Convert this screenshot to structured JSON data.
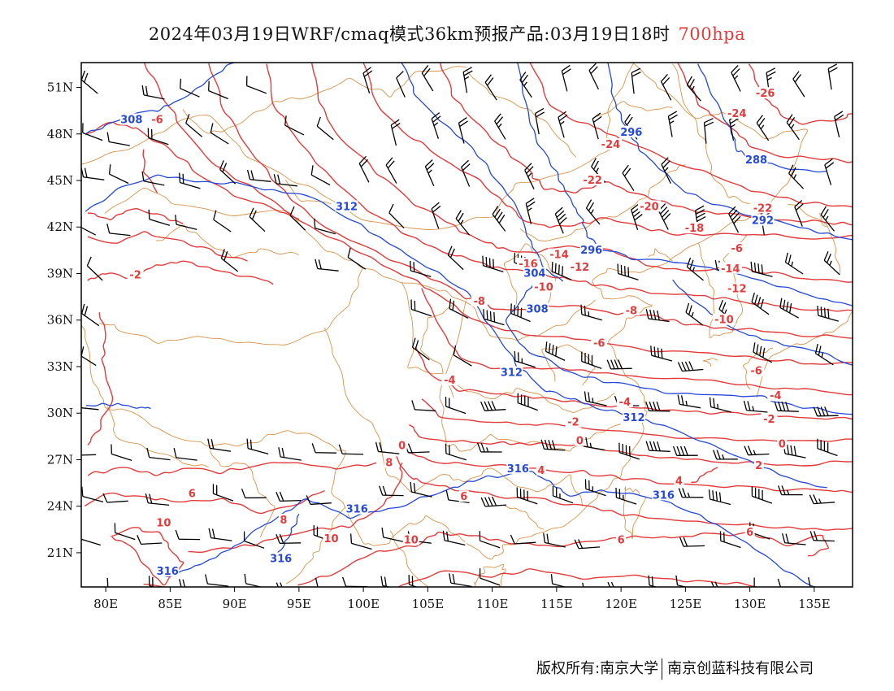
{
  "title": {
    "main": "2024年03月19日WRF/cmaq模式36km预报产品:03月19日18时",
    "level": "700hpa",
    "level_color": "#e23b3b"
  },
  "colors": {
    "temperature": "#e23b3b",
    "height": "#2448d8",
    "border": "#d9924a",
    "wind": "#000000"
  },
  "axes": {
    "lon_ticks": [
      "80E",
      "85E",
      "90E",
      "95E",
      "100E",
      "105E",
      "110E",
      "115E",
      "120E",
      "125E",
      "130E",
      "135E"
    ],
    "lat_ticks": [
      "51N",
      "48N",
      "45N",
      "42N",
      "39N",
      "36N",
      "33N",
      "30N",
      "27N",
      "24N",
      "21N"
    ]
  },
  "temperature_labels": [
    {
      "text": "-26",
      "lon": 131.2,
      "lat": 50.6
    },
    {
      "text": "-24",
      "lon": 129.0,
      "lat": 49.3
    },
    {
      "text": "-24",
      "lon": 119.2,
      "lat": 47.3
    },
    {
      "text": "-22",
      "lon": 117.8,
      "lat": 45.0
    },
    {
      "text": "-22",
      "lon": 131.0,
      "lat": 43.2
    },
    {
      "text": "-20",
      "lon": 122.2,
      "lat": 43.3
    },
    {
      "text": "-18",
      "lon": 125.7,
      "lat": 41.9
    },
    {
      "text": "-6",
      "lon": 129.0,
      "lat": 40.6
    },
    {
      "text": "-16",
      "lon": 112.8,
      "lat": 39.6
    },
    {
      "text": "-14",
      "lon": 115.2,
      "lat": 40.2
    },
    {
      "text": "-12",
      "lon": 116.8,
      "lat": 39.4
    },
    {
      "text": "-14",
      "lon": 128.5,
      "lat": 39.3
    },
    {
      "text": "-12",
      "lon": 129.0,
      "lat": 38.0
    },
    {
      "text": "-10",
      "lon": 114.0,
      "lat": 38.1
    },
    {
      "text": "-10",
      "lon": 128.0,
      "lat": 36.0
    },
    {
      "text": "-8",
      "lon": 109.0,
      "lat": 37.2
    },
    {
      "text": "-8",
      "lon": 120.8,
      "lat": 36.6
    },
    {
      "text": "-6",
      "lon": 118.3,
      "lat": 34.5
    },
    {
      "text": "-6",
      "lon": 130.5,
      "lat": 32.7
    },
    {
      "text": "-4",
      "lon": 106.7,
      "lat": 32.1
    },
    {
      "text": "-4",
      "lon": 120.3,
      "lat": 30.7
    },
    {
      "text": "-4",
      "lon": 132.0,
      "lat": 31.1
    },
    {
      "text": "-2",
      "lon": 82.3,
      "lat": 38.9
    },
    {
      "text": "-2",
      "lon": 116.3,
      "lat": 29.4
    },
    {
      "text": "-2",
      "lon": 131.5,
      "lat": 29.6
    },
    {
      "text": "0",
      "lon": 116.8,
      "lat": 28.2
    },
    {
      "text": "0",
      "lon": 132.5,
      "lat": 28.0
    },
    {
      "text": "0",
      "lon": 103.0,
      "lat": 27.9
    },
    {
      "text": "2",
      "lon": 130.7,
      "lat": 26.6
    },
    {
      "text": "4",
      "lon": 113.8,
      "lat": 26.3
    },
    {
      "text": "4",
      "lon": 124.5,
      "lat": 25.6
    },
    {
      "text": "6",
      "lon": 86.7,
      "lat": 24.8
    },
    {
      "text": "6",
      "lon": 107.8,
      "lat": 24.6
    },
    {
      "text": "6",
      "lon": 130.0,
      "lat": 22.3
    },
    {
      "text": "6",
      "lon": 120.0,
      "lat": 21.8
    },
    {
      "text": "8",
      "lon": 102.0,
      "lat": 26.8
    },
    {
      "text": "8",
      "lon": 93.8,
      "lat": 23.1
    },
    {
      "text": "10",
      "lon": 84.5,
      "lat": 22.9
    },
    {
      "text": "10",
      "lon": 97.5,
      "lat": 21.9
    },
    {
      "text": "10",
      "lon": 103.7,
      "lat": 21.8
    },
    {
      "text": "-6",
      "lon": 84.0,
      "lat": 48.9
    }
  ],
  "height_labels": [
    {
      "text": "308",
      "lon": 82.0,
      "lat": 48.9
    },
    {
      "text": "296",
      "lon": 120.8,
      "lat": 48.1
    },
    {
      "text": "288",
      "lon": 130.5,
      "lat": 46.3
    },
    {
      "text": "312",
      "lon": 98.7,
      "lat": 43.3
    },
    {
      "text": "292",
      "lon": 131.0,
      "lat": 42.4
    },
    {
      "text": "296",
      "lon": 117.7,
      "lat": 40.5
    },
    {
      "text": "304",
      "lon": 113.3,
      "lat": 39.0
    },
    {
      "text": "308",
      "lon": 113.5,
      "lat": 36.7
    },
    {
      "text": "312",
      "lon": 111.5,
      "lat": 32.6
    },
    {
      "text": "312",
      "lon": 121.0,
      "lat": 29.7
    },
    {
      "text": "316",
      "lon": 112.0,
      "lat": 26.4
    },
    {
      "text": "316",
      "lon": 123.3,
      "lat": 24.7
    },
    {
      "text": "316",
      "lon": 99.5,
      "lat": 23.8
    },
    {
      "text": "316",
      "lon": 93.6,
      "lat": 20.6
    },
    {
      "text": "316",
      "lon": 84.8,
      "lat": 19.8
    }
  ],
  "footer": {
    "left": "版权所有:南京大学",
    "right": "南京创蓝科技有限公司"
  }
}
